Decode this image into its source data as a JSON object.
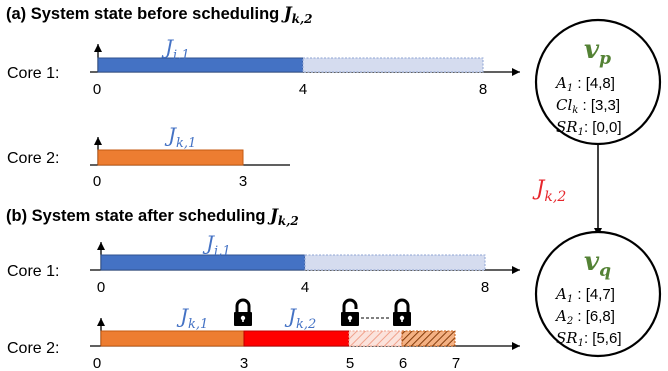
{
  "section_a": {
    "title_prefix": "(a) System state before scheduling ",
    "title_job": "J",
    "title_sub": "k,2"
  },
  "section_b": {
    "title_prefix": "(b) System state after scheduling ",
    "title_job": "J",
    "title_sub": "k,2"
  },
  "cores": {
    "core1_label": "Core 1:",
    "core2_label": "Core 2:"
  },
  "jobs": {
    "j_i1": {
      "main": "J",
      "sub": "i,1"
    },
    "j_k1": {
      "main": "J",
      "sub": "k,1"
    },
    "j_k2": {
      "main": "J",
      "sub": "k,2"
    }
  },
  "ticks_a_core1": [
    "0",
    "4",
    "8"
  ],
  "ticks_a_core2": [
    "0",
    "3"
  ],
  "ticks_b_core1": [
    "0",
    "4",
    "8"
  ],
  "ticks_b_core2": [
    "0",
    "3",
    "5",
    "6",
    "7"
  ],
  "node_p": {
    "label_main": "v",
    "label_sub": "p",
    "rows": [
      {
        "name": "A",
        "sub": "1",
        "sep": " : ",
        "value": "[4,8]"
      },
      {
        "name": "Cl",
        "sub": "k",
        "sep": " : ",
        "value": "[3,3]"
      },
      {
        "name": "SR",
        "sub": "1",
        "sep": ": ",
        "value": "[0,0]"
      }
    ]
  },
  "node_q": {
    "label_main": "v",
    "label_sub": "q",
    "rows": [
      {
        "name": "A",
        "sub": "1",
        "sep": " : ",
        "value": "[4,7]"
      },
      {
        "name": "A",
        "sub": "2",
        "sep": " : ",
        "value": "[6,8]"
      },
      {
        "name": "SR",
        "sub": "1",
        "sep": ": ",
        "value": "[5,6]"
      }
    ]
  },
  "edge_label": {
    "main": "J",
    "sub": "k,2"
  },
  "colors": {
    "blue": "#4472c4",
    "light_blue": "#d5dcef",
    "orange": "#ed7d31",
    "red": "#ff0000",
    "green": "#548235",
    "edge_label": "#e6262c"
  },
  "icons": [
    "lock-icon",
    "unlock-icon"
  ]
}
